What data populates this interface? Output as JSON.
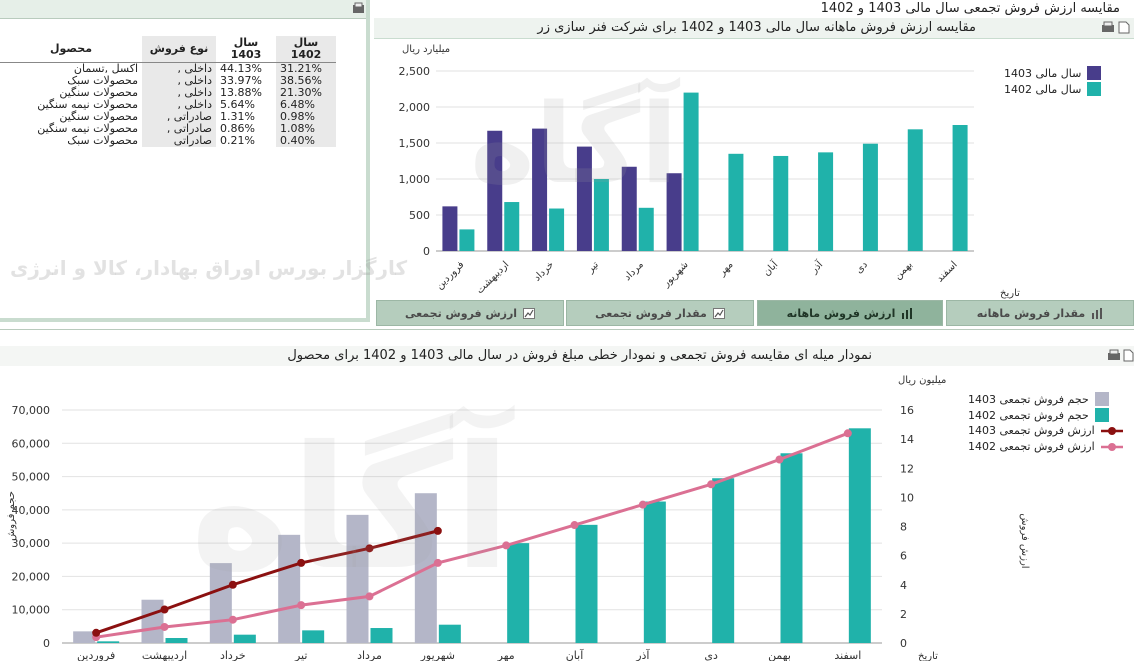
{
  "table_panel": {
    "title": "مقایسه ارزش فروش تجمعی سال مالی 1403 و 1402",
    "columns": {
      "product": "محصول",
      "sale_type": "نوع فروش",
      "y1403": "سال 1403",
      "y1402": "سال 1402"
    },
    "rows": [
      {
        "product": "اکسل ,تسمان",
        "type": "داخلی ,",
        "v1403": "44.13%",
        "v1402": "31.21%"
      },
      {
        "product": "محصولات سبک",
        "type": "داخلی ,",
        "v1403": "33.97%",
        "v1402": "38.56%"
      },
      {
        "product": "محصولات سنگین",
        "type": "داخلی ,",
        "v1403": "13.88%",
        "v1402": "21.30%"
      },
      {
        "product": "محصولات نیمه سنگین",
        "type": "داخلی ,",
        "v1403": "5.64%",
        "v1402": "6.48%"
      },
      {
        "product": "محصولات سنگین",
        "type": "صادراتی ,",
        "v1403": "1.31%",
        "v1402": "0.98%"
      },
      {
        "product": "محصولات نیمه سنگین",
        "type": "صادراتی ,",
        "v1403": "0.86%",
        "v1402": "1.08%"
      },
      {
        "product": "محصولات سبک",
        "type": "صادراتی",
        "v1403": "0.21%",
        "v1402": "0.40%"
      }
    ]
  },
  "monthly_panel": {
    "title": "مقایسه ارزش فروش ماهانه سال مالی 1403 و 1402 برای شرکت فنر سازی زر"
  },
  "tabs": [
    {
      "label": "ارزش فروش تجمعی"
    },
    {
      "label": "مقدار فروش تجمعی"
    },
    {
      "label": "ارزش فروش ماهانه"
    },
    {
      "label": "مقدار فروش ماهانه"
    }
  ],
  "bottom_panel": {
    "title": "نمودار میله ای مقایسه فروش تجمعی و نمودار خطی مبلغ فروش در سال مالی 1403 و 1402 برای محصول"
  },
  "watermark": {
    "line1": "آگاه",
    "line2": "کارگزار بورس اوراق بهادار، کالا و انرژی"
  },
  "colors": {
    "c1403": "#483d8b",
    "c1402": "#20b2aa",
    "gray1403": "#b4b6c8",
    "line1403": "#8b1010",
    "line1402": "#db7093"
  },
  "chart_data": [
    {
      "type": "bar",
      "ylabel": "میلیارد ریال",
      "xlabel": "تاریخ",
      "ylim": [
        0,
        2500
      ],
      "yticks": [
        0,
        500,
        1000,
        1500,
        2000,
        2500
      ],
      "ytick_labels": [
        "0",
        "500",
        "1,000",
        "1,500",
        "2,000",
        "2,500"
      ],
      "categories": [
        "فروردین",
        "اردیبهشت",
        "خرداد",
        "تیر",
        "مرداد",
        "شهریور",
        "مهر",
        "آبان",
        "آذر",
        "دی",
        "بهمن",
        "اسفند"
      ],
      "series": [
        {
          "name": "سال مالی 1403",
          "values": [
            620,
            1670,
            1700,
            1450,
            1170,
            1080,
            null,
            null,
            null,
            null,
            null,
            null
          ]
        },
        {
          "name": "سال مالی 1402",
          "values": [
            300,
            680,
            590,
            1000,
            600,
            2200,
            1350,
            1320,
            1370,
            1490,
            1690,
            1750
          ]
        }
      ],
      "legend": "top-right"
    },
    {
      "type": "bar",
      "ylabel": "حجم فروش",
      "ylabel_right": "ارزش فروش",
      "y2_unit": "میلیون ریال",
      "xlabel": "تاریخ",
      "ylim": [
        0,
        70000
      ],
      "y2lim": [
        0,
        16
      ],
      "yticks": [
        0,
        10000,
        20000,
        30000,
        40000,
        50000,
        60000,
        70000
      ],
      "ytick_labels": [
        "0",
        "10,000",
        "20,000",
        "30,000",
        "40,000",
        "50,000",
        "60,000",
        "70,000"
      ],
      "y2ticks": [
        0,
        2,
        4,
        6,
        8,
        10,
        12,
        14,
        16
      ],
      "categories": [
        "فروردین",
        "اردیبهشت",
        "خرداد",
        "تیر",
        "مرداد",
        "شهریور",
        "مهر",
        "آبان",
        "آذر",
        "دی",
        "بهمن",
        "اسفند"
      ],
      "series": [
        {
          "name": "حجم فروش تجمعی 1403",
          "kind": "bar",
          "values": [
            3500,
            13000,
            24000,
            32500,
            38500,
            45000,
            null,
            null,
            null,
            null,
            null,
            null
          ]
        },
        {
          "name": "حجم فروش تجمعی 1402",
          "kind": "bar",
          "values": [
            500,
            1500,
            2500,
            3800,
            4500,
            5500,
            30000,
            35500,
            42500,
            49500,
            57000,
            64500
          ]
        },
        {
          "name": "ارزش فروش تجمعی 1403",
          "kind": "line",
          "values": [
            0.7,
            2.3,
            4.0,
            5.5,
            6.5,
            7.7,
            null,
            null,
            null,
            null,
            null,
            null
          ]
        },
        {
          "name": "ارزش فروش تجمعی 1402",
          "kind": "line",
          "values": [
            0.4,
            1.1,
            1.6,
            2.6,
            3.2,
            5.5,
            6.7,
            8.1,
            9.5,
            10.9,
            12.6,
            14.4
          ]
        }
      ],
      "legend": "top-right"
    }
  ]
}
